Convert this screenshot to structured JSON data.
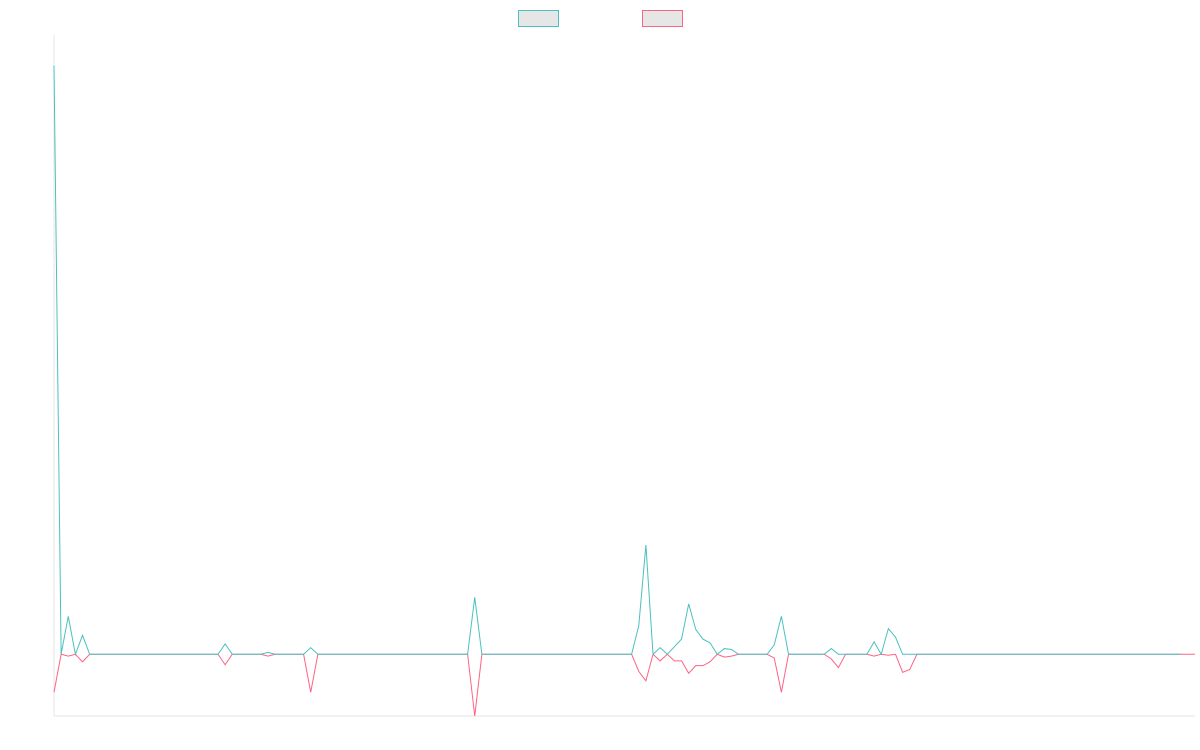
{
  "chart_data": {
    "type": "line",
    "title": "",
    "xlabel": "",
    "ylabel": "",
    "ylim": [
      -6.5,
      65
    ],
    "grid": false,
    "legend": {
      "placement": "top-center",
      "entries": 2
    },
    "series": [
      {
        "name": "",
        "color": "#4bc0c0",
        "fill": "#e6e6e6",
        "values": [
          62,
          0,
          4,
          0,
          2,
          0,
          0,
          0,
          0,
          0,
          0,
          0,
          0,
          0,
          0,
          0,
          0,
          0,
          0,
          0,
          0,
          0,
          0,
          0,
          1.1,
          0,
          0,
          0,
          0,
          0,
          0.2,
          0,
          0,
          0,
          0,
          0,
          0.7,
          0,
          0,
          0,
          0,
          0,
          0,
          0,
          0,
          0,
          0,
          0,
          0,
          0,
          0,
          0,
          0,
          0,
          0,
          0,
          0,
          0,
          0,
          6,
          0,
          0,
          0,
          0,
          0,
          0,
          0,
          0,
          0,
          0,
          0,
          0,
          0,
          0,
          0,
          0,
          0,
          0,
          0,
          0,
          0,
          0,
          3,
          11.5,
          0,
          0.7,
          0,
          0.8,
          1.6,
          5.3,
          2.6,
          1.6,
          1.2,
          0,
          0.6,
          0.5,
          0,
          0,
          0,
          0,
          0,
          1,
          4,
          0,
          0,
          0,
          0,
          0,
          0,
          0.6,
          0,
          0,
          0,
          0,
          0,
          1.3,
          0,
          2.7,
          1.8,
          0,
          0,
          0,
          0,
          0,
          0,
          0,
          0,
          0,
          0,
          0,
          0,
          0,
          0,
          0,
          0,
          0,
          0,
          0,
          0,
          0,
          0,
          0,
          0,
          0,
          0,
          0,
          0,
          0,
          0,
          0,
          0,
          0,
          0,
          0,
          0,
          0,
          0,
          0,
          0
        ]
      },
      {
        "name": "",
        "color": "#ff6384",
        "fill": "#e6e6e6",
        "values": [
          -4,
          0,
          -0.2,
          0,
          -0.8,
          0,
          0,
          0,
          0,
          0,
          0,
          0,
          0,
          0,
          0,
          0,
          0,
          0,
          0,
          0,
          0,
          0,
          0,
          0,
          -1.1,
          0,
          0,
          0,
          0,
          0,
          -0.2,
          0,
          0,
          0,
          0,
          0,
          -4,
          0,
          0,
          0,
          0,
          0,
          0,
          0,
          0,
          0,
          0,
          0,
          0,
          0,
          0,
          0,
          0,
          0,
          0,
          0,
          0,
          0,
          0,
          -6.5,
          0,
          0,
          0,
          0,
          0,
          0,
          0,
          0,
          0,
          0,
          0,
          0,
          0,
          0,
          0,
          0,
          0,
          0,
          0,
          0,
          0,
          0,
          -1.8,
          -2.8,
          0,
          -0.7,
          0,
          -0.7,
          -0.7,
          -2,
          -1.2,
          -1.2,
          -0.8,
          0,
          -0.3,
          -0.2,
          0,
          0,
          0,
          0,
          0,
          -0.4,
          -4,
          0,
          0,
          0,
          0,
          0,
          0,
          -0.5,
          -1.4,
          0,
          0,
          0,
          0,
          -0.2,
          0,
          -0.1,
          0,
          -1.9,
          -1.6,
          0,
          0,
          0,
          0,
          0,
          0,
          0,
          0,
          0,
          0,
          0,
          0,
          0,
          0,
          0,
          0,
          0,
          0,
          0,
          0,
          0,
          0,
          0,
          0,
          0,
          0,
          0,
          0,
          0,
          0,
          0,
          0,
          0,
          0,
          0,
          0,
          0,
          0,
          0,
          0
        ]
      }
    ]
  }
}
